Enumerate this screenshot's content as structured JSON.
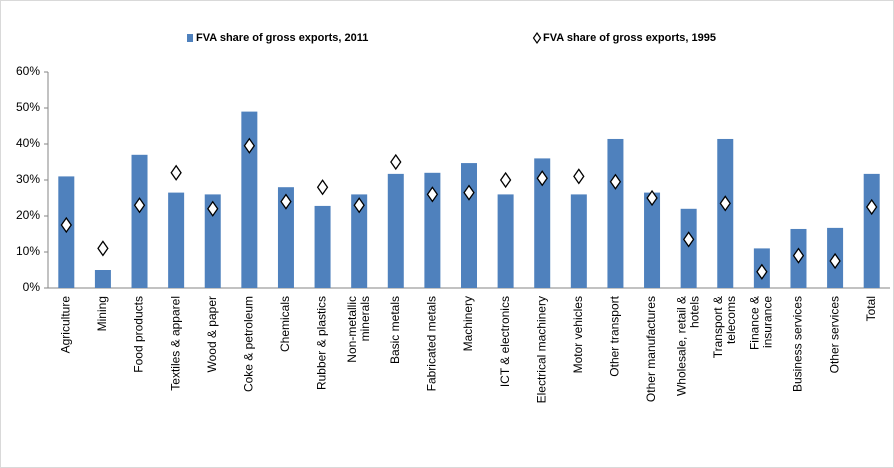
{
  "chart_data": {
    "type": "bar",
    "categories": [
      [
        "Agriculture"
      ],
      [
        "Mining"
      ],
      [
        "Food products"
      ],
      [
        "Textiles & apparel"
      ],
      [
        "Wood & paper"
      ],
      [
        "Coke & petroleum"
      ],
      [
        "Chemicals"
      ],
      [
        "Rubber & plastics"
      ],
      [
        "Non-metallic",
        "minerals"
      ],
      [
        "Basic metals"
      ],
      [
        "Fabricated metals"
      ],
      [
        "Machinery"
      ],
      [
        "ICT & electronics"
      ],
      [
        "Electrical machinery"
      ],
      [
        "Motor vehicles"
      ],
      [
        "Other transport"
      ],
      [
        "Other manufactures"
      ],
      [
        "Wholesale, retail &",
        "hotels"
      ],
      [
        "Transport &",
        "telecoms"
      ],
      [
        "Finance &",
        "insurance"
      ],
      [
        "Business services"
      ],
      [
        "Other services"
      ],
      [
        "Total"
      ]
    ],
    "series": [
      {
        "name": "FVA share of gross exports, 2011",
        "color": "#4f81bd",
        "marker": "bar",
        "values": [
          31,
          5,
          37,
          26.5,
          26,
          49,
          28,
          22.8,
          26,
          31.7,
          32,
          34.7,
          26,
          36,
          26,
          41.4,
          26.5,
          22,
          41.4,
          11,
          16.4,
          16.7,
          31.7
        ]
      },
      {
        "name": "FVA share of gross exports, 1995",
        "color": "#000000",
        "marker": "diamond",
        "values": [
          17.5,
          11,
          23,
          32,
          22,
          39.5,
          24,
          28,
          23,
          35,
          26,
          26.5,
          30,
          30.5,
          31,
          29.5,
          25,
          13.5,
          23.5,
          4.5,
          9,
          7.5,
          22.5
        ]
      }
    ],
    "ylim": [
      0,
      60
    ],
    "yticks": [
      {
        "value": 0,
        "label": "0%"
      },
      {
        "value": 10,
        "label": "10%"
      },
      {
        "value": 20,
        "label": "20%"
      },
      {
        "value": 30,
        "label": "30%"
      },
      {
        "value": 40,
        "label": "40%"
      },
      {
        "value": 50,
        "label": "50%"
      },
      {
        "value": 60,
        "label": "60%"
      }
    ],
    "grid": false
  }
}
